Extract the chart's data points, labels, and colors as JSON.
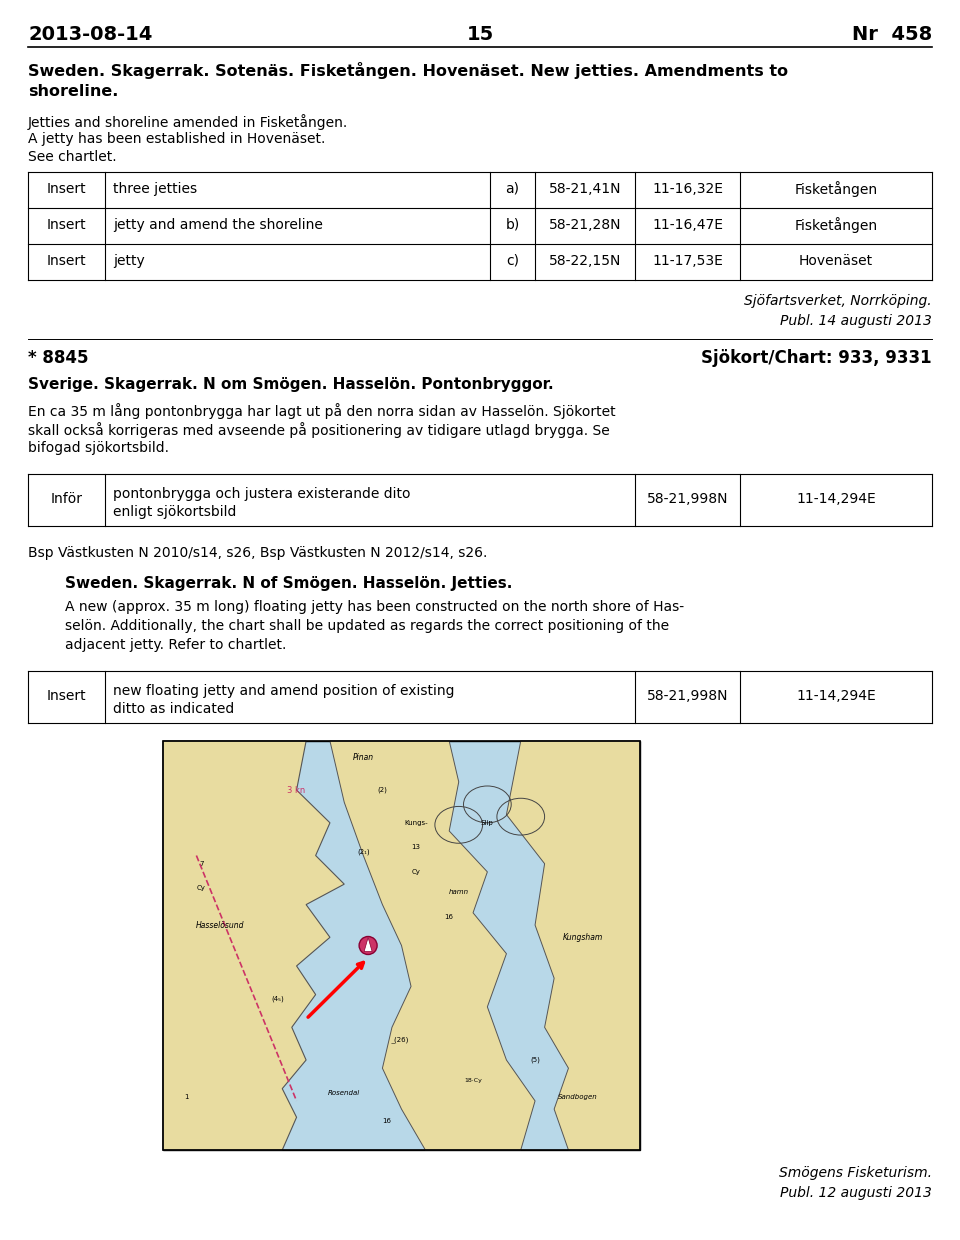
{
  "header_date": "2013-08-14",
  "header_page": "15",
  "header_nr": "Nr  458",
  "section1_bold_line1": "Sweden. Skagerrak. Sotenäs. Fisketången. Hovenäset. New jetties. Amendments to",
  "section1_bold_line2": "shoreline.",
  "section1_para1": "Jetties and shoreline amended in Fisketången.",
  "section1_para2": "A jetty has been established in Hovenäset.",
  "section1_para3": "See chartlet.",
  "table1": [
    [
      "Insert",
      "three jetties",
      "a)",
      "58-21,41N",
      "11-16,32E",
      "Fisketången"
    ],
    [
      "Insert",
      "jetty and amend the shoreline",
      "b)",
      "58-21,28N",
      "11-16,47E",
      "Fisketången"
    ],
    [
      "Insert",
      "jetty",
      "c)",
      "58-22,15N",
      "11-17,53E",
      "Hovenäset"
    ]
  ],
  "attribution1_line1": "Sjöfartsverket, Norrköping.",
  "attribution1_line2": "Publ. 14 augusti 2013",
  "section2_star_num": "* 8845",
  "section2_chart": "Sjökort/Chart: 933, 9331",
  "section2_bold_title": "Sverige. Skagerrak. N om Smögen. Hasselön. Pontonbryggor.",
  "section2_para1_lines": [
    "En ca 35 m lång pontonbrygga har lagt ut på den norra sidan av Hasselön. Sjökortet",
    "skall också korrigeras med avseende på positionering av tidigare utlagd brygga. Se",
    "bifogad sjökortsbild."
  ],
  "table2_col0": "Inför",
  "table2_desc_line1": "pontonbrygga och justera existerande dito",
  "table2_desc_line2": "enligt sjökortsbild",
  "table2_coord1": "58-21,998N",
  "table2_coord2": "11-14,294E",
  "section2_para2": "Bsp Västkusten N 2010/s14, s26, Bsp Västkusten N 2012/s14, s26.",
  "section3_bold_title": "Sweden. Skagerrak. N of Smögen. Hasselön. Jetties.",
  "section3_para1_lines": [
    "A new (approx. 35 m long) floating jetty has been constructed on the north shore of Has-",
    "selön. Additionally, the chart shall be updated as regards the correct positioning of the",
    "adjacent jetty. Refer to chartlet."
  ],
  "table3_col0": "Insert",
  "table3_desc_line1": "new floating jetty and amend position of existing",
  "table3_desc_line2": "ditto as indicated",
  "table3_coord1": "58-21,998N",
  "table3_coord2": "11-14,294E",
  "attribution2_line1": "Smögens Fisketurism.",
  "attribution2_line2": "Publ. 12 augusti 2013",
  "bg_color": "#ffffff",
  "map_water_color": "#b8d8e8",
  "map_land_color": "#e8dca0",
  "map_land_dark": "#d4c070",
  "map_pink_color": "#cc3366"
}
